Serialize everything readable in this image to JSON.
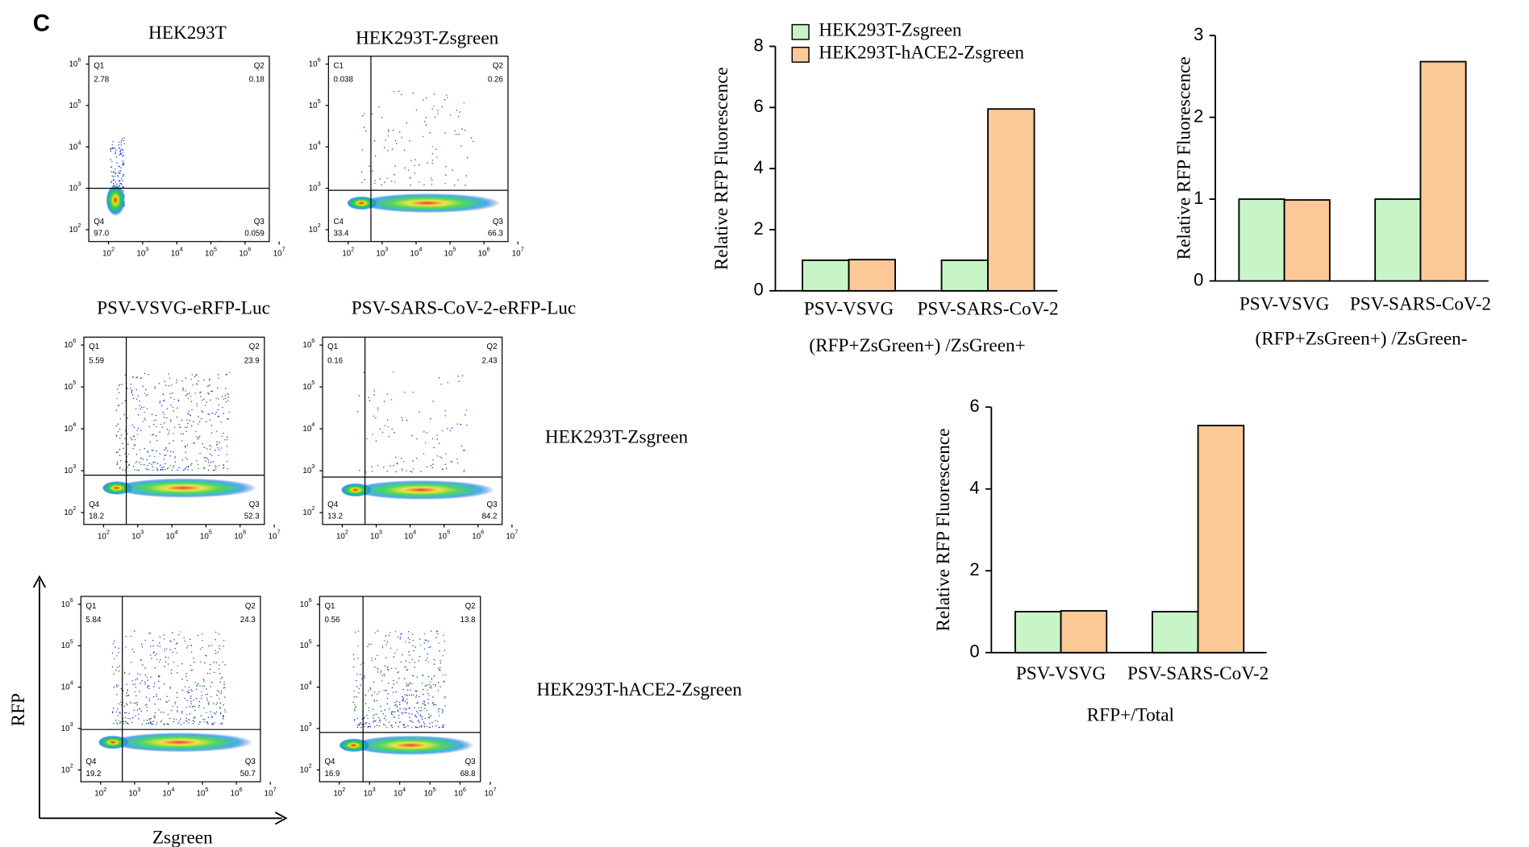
{
  "panel_label": "C",
  "flow_axis": {
    "base": "10",
    "x_exponents": [
      "2",
      "3",
      "4",
      "5",
      "6",
      "7"
    ],
    "y_exponents": [
      "2",
      "3",
      "4",
      "5",
      "6"
    ],
    "x_label": "Zsgreen",
    "y_label": "RFP"
  },
  "row_labels": [
    "HEK293T-Zsgreen",
    "HEK293T-hACE2-Zsgreen"
  ],
  "flow_plots": [
    {
      "title": "HEK293T",
      "quadrants": [
        {
          "label": "Q1",
          "value": "2.78"
        },
        {
          "label": "Q2",
          "value": "0.18"
        },
        {
          "label": "Q4",
          "value": "97.0"
        },
        {
          "label": "Q3",
          "value": "0.059"
        }
      ]
    },
    {
      "title": "HEK293T-Zsgreen",
      "quadrants": [
        {
          "label": "C1",
          "value": "0.038"
        },
        {
          "label": "Q2",
          "value": "0.26"
        },
        {
          "label": "C4",
          "value": "33.4"
        },
        {
          "label": "Q3",
          "value": "66.3"
        }
      ]
    },
    {
      "title": "PSV-VSVG-eRFP-Luc",
      "quadrants": [
        {
          "label": "Q1",
          "value": "5.59"
        },
        {
          "label": "Q2",
          "value": "23.9"
        },
        {
          "label": "Q4",
          "value": "18.2"
        },
        {
          "label": "Q3",
          "value": "52.3"
        }
      ]
    },
    {
      "title": "PSV-SARS-CoV-2-eRFP-Luc",
      "quadrants": [
        {
          "label": "Q1",
          "value": "0.16"
        },
        {
          "label": "Q2",
          "value": "2.43"
        },
        {
          "label": "Q4",
          "value": "13.2"
        },
        {
          "label": "Q3",
          "value": "84.2"
        }
      ]
    },
    {
      "title": null,
      "quadrants": [
        {
          "label": "Q1",
          "value": "5.84"
        },
        {
          "label": "Q2",
          "value": "24.3"
        },
        {
          "label": "Q4",
          "value": "19.2"
        },
        {
          "label": "Q3",
          "value": "50.7"
        }
      ]
    },
    {
      "title": null,
      "quadrants": [
        {
          "label": "Q1",
          "value": "0.56"
        },
        {
          "label": "Q2",
          "value": "13.8"
        },
        {
          "label": "Q4",
          "value": "16.9"
        },
        {
          "label": "Q3",
          "value": "68.8"
        }
      ]
    }
  ],
  "chart_data": [
    {
      "type": "bar",
      "y_label": "Relative RFP Fluorescence",
      "x_label": "(RFP+ZsGreen+)  /ZsGreen+",
      "categories": [
        "PSV-VSVG",
        "PSV-SARS-CoV-2"
      ],
      "ylim": [
        0,
        8
      ],
      "yticks": [
        0,
        2,
        4,
        6,
        8
      ],
      "legend": "top-left",
      "series": [
        {
          "name": "HEK293T-Zsgreen",
          "color": "#c8f5c8",
          "values": [
            1,
            1
          ]
        },
        {
          "name": "HEK293T-hACE2-Zsgreen",
          "color": "#fdc996",
          "values": [
            1.02,
            5.95
          ]
        }
      ]
    },
    {
      "type": "bar",
      "y_label": "Relative RFP Fluorescence",
      "x_label": "(RFP+ZsGreen+)  /ZsGreen-",
      "categories": [
        "PSV-VSVG",
        "PSV-SARS-CoV-2"
      ],
      "ylim": [
        0,
        3
      ],
      "yticks": [
        0,
        1,
        2,
        3
      ],
      "series": [
        {
          "color": "#c8f5c8",
          "values": [
            1,
            1
          ]
        },
        {
          "color": "#fdc996",
          "values": [
            0.99,
            2.68
          ]
        }
      ]
    },
    {
      "type": "bar",
      "y_label": "Relative RFP Fluorescence",
      "x_label": "RFP+/Total",
      "categories": [
        "PSV-VSVG",
        "PSV-SARS-CoV-2"
      ],
      "ylim": [
        0,
        6
      ],
      "yticks": [
        0,
        2,
        4,
        6
      ],
      "series": [
        {
          "color": "#c8f5c8",
          "values": [
            1,
            1
          ]
        },
        {
          "color": "#fdc996",
          "values": [
            1.02,
            5.55
          ]
        }
      ]
    }
  ]
}
